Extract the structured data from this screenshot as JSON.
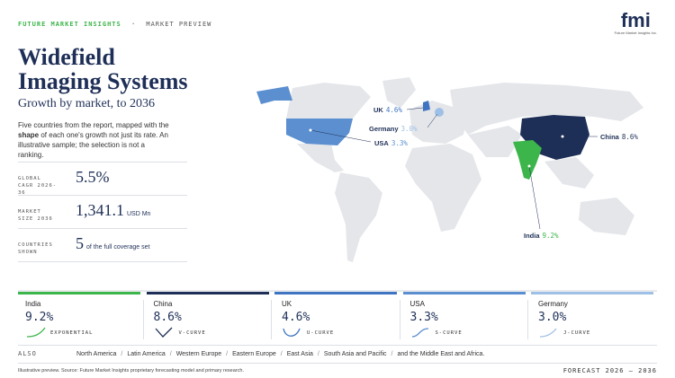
{
  "header": {
    "brand": "FUTURE MARKET INSIGHTS",
    "dot": "·",
    "section": "MARKET PREVIEW",
    "logo": "fmi",
    "logo_caption": "Future Market Insights Inc."
  },
  "title": "Widefield Imaging Systems",
  "subtitle": "Growth by market, to 2036",
  "intro": [
    "Five countries from the report, mapped with the ",
    "shape",
    " of each one's growth not just its rate. An illustrative sample; the selection is not a ranking."
  ],
  "stats": [
    {
      "label": "GLOBAL CAGR 2026-36",
      "value": "5.5%"
    },
    {
      "label": "MARKET SIZE 2036",
      "value": "1,341.1",
      "unit": "USD Mn"
    },
    {
      "label": "COUNTRIES SHOWN",
      "value": "5",
      "unit": "of the full coverage set"
    }
  ],
  "cards": [
    {
      "country": "India",
      "value": "9.2%",
      "curve": "EXPONENTIAL",
      "color": "#3cb54a"
    },
    {
      "country": "China",
      "value": "8.6%",
      "curve": "V-CURVE",
      "color": "#1e2f57"
    },
    {
      "country": "UK",
      "value": "4.6%",
      "curve": "U-CURVE",
      "color": "#3f74c2"
    },
    {
      "country": "USA",
      "value": "3.3%",
      "curve": "S-CURVE",
      "color": "#5b8fd0"
    },
    {
      "country": "Germany",
      "value": "3.0%",
      "curve": "J-CURVE",
      "color": "#9fc0e6"
    }
  ],
  "also": {
    "label": "ALSO",
    "separator": "/",
    "regions": [
      "North America",
      "Latin America",
      "Western Europe",
      "Eastern Europe",
      "East Asia",
      "South Asia and Pacific",
      "and the Middle East and Africa."
    ]
  },
  "footer": {
    "note": "Illustrative preview. Source: Future Market Insights proprietary forecasting model and primary research.",
    "forecast": "FORECAST 2026 – 2036"
  }
}
